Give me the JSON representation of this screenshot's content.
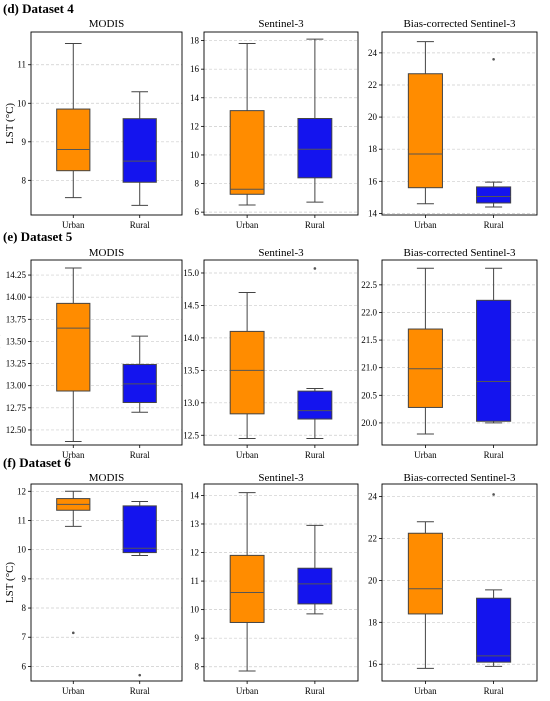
{
  "colors": {
    "urban": "#ff8c00",
    "rural": "#1414ee",
    "median": "#555555",
    "grid": "#cccccc",
    "frame": "#000000"
  },
  "sections": [
    {
      "label": "(d) Dataset 4"
    },
    {
      "label": "(e) Dataset 5"
    },
    {
      "label": "(f) Dataset 6"
    }
  ],
  "chart_data": [
    {
      "type": "box",
      "section": 0,
      "title": "MODIS",
      "ylabel": "LST (°C)",
      "categories": [
        "Urban",
        "Rural"
      ],
      "ylim": [
        7.1,
        11.85
      ],
      "yticks": [
        8,
        9,
        10,
        11
      ],
      "grid": true,
      "boxes": [
        {
          "category": "Urban",
          "whislo": 7.55,
          "q1": 8.25,
          "med": 8.8,
          "q3": 9.85,
          "whishi": 11.55,
          "fliers": []
        },
        {
          "category": "Rural",
          "whislo": 7.35,
          "q1": 7.95,
          "med": 8.5,
          "q3": 9.6,
          "whishi": 10.3,
          "fliers": []
        }
      ]
    },
    {
      "type": "box",
      "section": 0,
      "title": "Sentinel-3",
      "ylabel": "",
      "categories": [
        "Urban",
        "Rural"
      ],
      "ylim": [
        5.8,
        18.6
      ],
      "yticks": [
        6,
        8,
        10,
        12,
        14,
        16,
        18
      ],
      "grid": true,
      "boxes": [
        {
          "category": "Urban",
          "whislo": 6.5,
          "q1": 7.25,
          "med": 7.6,
          "q3": 13.1,
          "whishi": 17.8,
          "fliers": []
        },
        {
          "category": "Rural",
          "whislo": 6.7,
          "q1": 8.4,
          "med": 10.4,
          "q3": 12.55,
          "whishi": 18.1,
          "fliers": []
        }
      ]
    },
    {
      "type": "box",
      "section": 0,
      "title": "Bias-corrected Sentinel-3",
      "ylabel": "",
      "categories": [
        "Urban",
        "Rural"
      ],
      "ylim": [
        13.9,
        25.3
      ],
      "yticks": [
        14,
        16,
        18,
        20,
        22,
        24
      ],
      "grid": true,
      "boxes": [
        {
          "category": "Urban",
          "whislo": 14.6,
          "q1": 15.6,
          "med": 17.7,
          "q3": 22.7,
          "whishi": 24.7,
          "fliers": []
        },
        {
          "category": "Rural",
          "whislo": 14.4,
          "q1": 14.65,
          "med": 15.05,
          "q3": 15.65,
          "whishi": 15.95,
          "fliers": [
            23.6
          ]
        }
      ]
    },
    {
      "type": "box",
      "section": 1,
      "title": "MODIS",
      "ylabel": "LST (°C)",
      "categories": [
        "Urban",
        "Rural"
      ],
      "ylim": [
        12.33,
        14.42
      ],
      "yticks": [
        12.5,
        12.75,
        13.0,
        13.25,
        13.5,
        13.75,
        14.0,
        14.25
      ],
      "tickDecimals": 2,
      "grid": true,
      "boxes": [
        {
          "category": "Urban",
          "whislo": 12.37,
          "q1": 12.94,
          "med": 13.65,
          "q3": 13.93,
          "whishi": 14.33,
          "fliers": []
        },
        {
          "category": "Rural",
          "whislo": 12.7,
          "q1": 12.81,
          "med": 13.02,
          "q3": 13.24,
          "whishi": 13.56,
          "fliers": []
        }
      ]
    },
    {
      "type": "box",
      "section": 1,
      "title": "Sentinel-3",
      "ylabel": "",
      "categories": [
        "Urban",
        "Rural"
      ],
      "ylim": [
        12.35,
        15.2
      ],
      "yticks": [
        12.5,
        13.0,
        13.5,
        14.0,
        14.5,
        15.0
      ],
      "tickDecimals": 1,
      "grid": true,
      "boxes": [
        {
          "category": "Urban",
          "whislo": 12.45,
          "q1": 12.83,
          "med": 13.5,
          "q3": 14.1,
          "whishi": 14.7,
          "fliers": []
        },
        {
          "category": "Rural",
          "whislo": 12.45,
          "q1": 12.75,
          "med": 12.88,
          "q3": 13.18,
          "whishi": 13.22,
          "fliers": [
            15.07
          ]
        }
      ]
    },
    {
      "type": "box",
      "section": 1,
      "title": "Bias-corrected Sentinel-3",
      "ylabel": "",
      "categories": [
        "Urban",
        "Rural"
      ],
      "ylim": [
        19.6,
        22.95
      ],
      "yticks": [
        20.0,
        20.5,
        21.0,
        21.5,
        22.0,
        22.5
      ],
      "tickDecimals": 1,
      "grid": true,
      "boxes": [
        {
          "category": "Urban",
          "whislo": 19.8,
          "q1": 20.28,
          "med": 20.98,
          "q3": 21.7,
          "whishi": 22.8,
          "fliers": []
        },
        {
          "category": "Rural",
          "whislo": 20.0,
          "q1": 20.03,
          "med": 20.75,
          "q3": 22.22,
          "whishi": 22.8,
          "fliers": []
        }
      ]
    },
    {
      "type": "box",
      "section": 2,
      "title": "MODIS",
      "ylabel": "LST (°C)",
      "categories": [
        "Urban",
        "Rural"
      ],
      "ylim": [
        5.5,
        12.25
      ],
      "yticks": [
        6,
        7,
        8,
        9,
        10,
        11,
        12
      ],
      "grid": true,
      "boxes": [
        {
          "category": "Urban",
          "whislo": 10.8,
          "q1": 11.35,
          "med": 11.55,
          "q3": 11.75,
          "whishi": 12.0,
          "fliers": [
            7.15
          ]
        },
        {
          "category": "Rural",
          "whislo": 9.8,
          "q1": 9.9,
          "med": 10.05,
          "q3": 11.5,
          "whishi": 11.65,
          "fliers": [
            5.7
          ]
        }
      ]
    },
    {
      "type": "box",
      "section": 2,
      "title": "Sentinel-3",
      "ylabel": "",
      "categories": [
        "Urban",
        "Rural"
      ],
      "ylim": [
        7.5,
        14.4
      ],
      "yticks": [
        8,
        9,
        10,
        11,
        12,
        13,
        14
      ],
      "grid": true,
      "boxes": [
        {
          "category": "Urban",
          "whislo": 7.85,
          "q1": 9.55,
          "med": 10.6,
          "q3": 11.9,
          "whishi": 14.1,
          "fliers": []
        },
        {
          "category": "Rural",
          "whislo": 9.85,
          "q1": 10.2,
          "med": 10.9,
          "q3": 11.45,
          "whishi": 12.95,
          "fliers": []
        }
      ]
    },
    {
      "type": "box",
      "section": 2,
      "title": "Bias-corrected Sentinel-3",
      "ylabel": "",
      "categories": [
        "Urban",
        "Rural"
      ],
      "ylim": [
        15.2,
        24.6
      ],
      "yticks": [
        16,
        18,
        20,
        22,
        24
      ],
      "grid": true,
      "boxes": [
        {
          "category": "Urban",
          "whislo": 15.8,
          "q1": 18.4,
          "med": 19.6,
          "q3": 22.25,
          "whishi": 22.8,
          "fliers": []
        },
        {
          "category": "Rural",
          "whislo": 15.9,
          "q1": 16.1,
          "med": 16.4,
          "q3": 19.15,
          "whishi": 19.55,
          "fliers": [
            24.1
          ]
        }
      ]
    }
  ]
}
